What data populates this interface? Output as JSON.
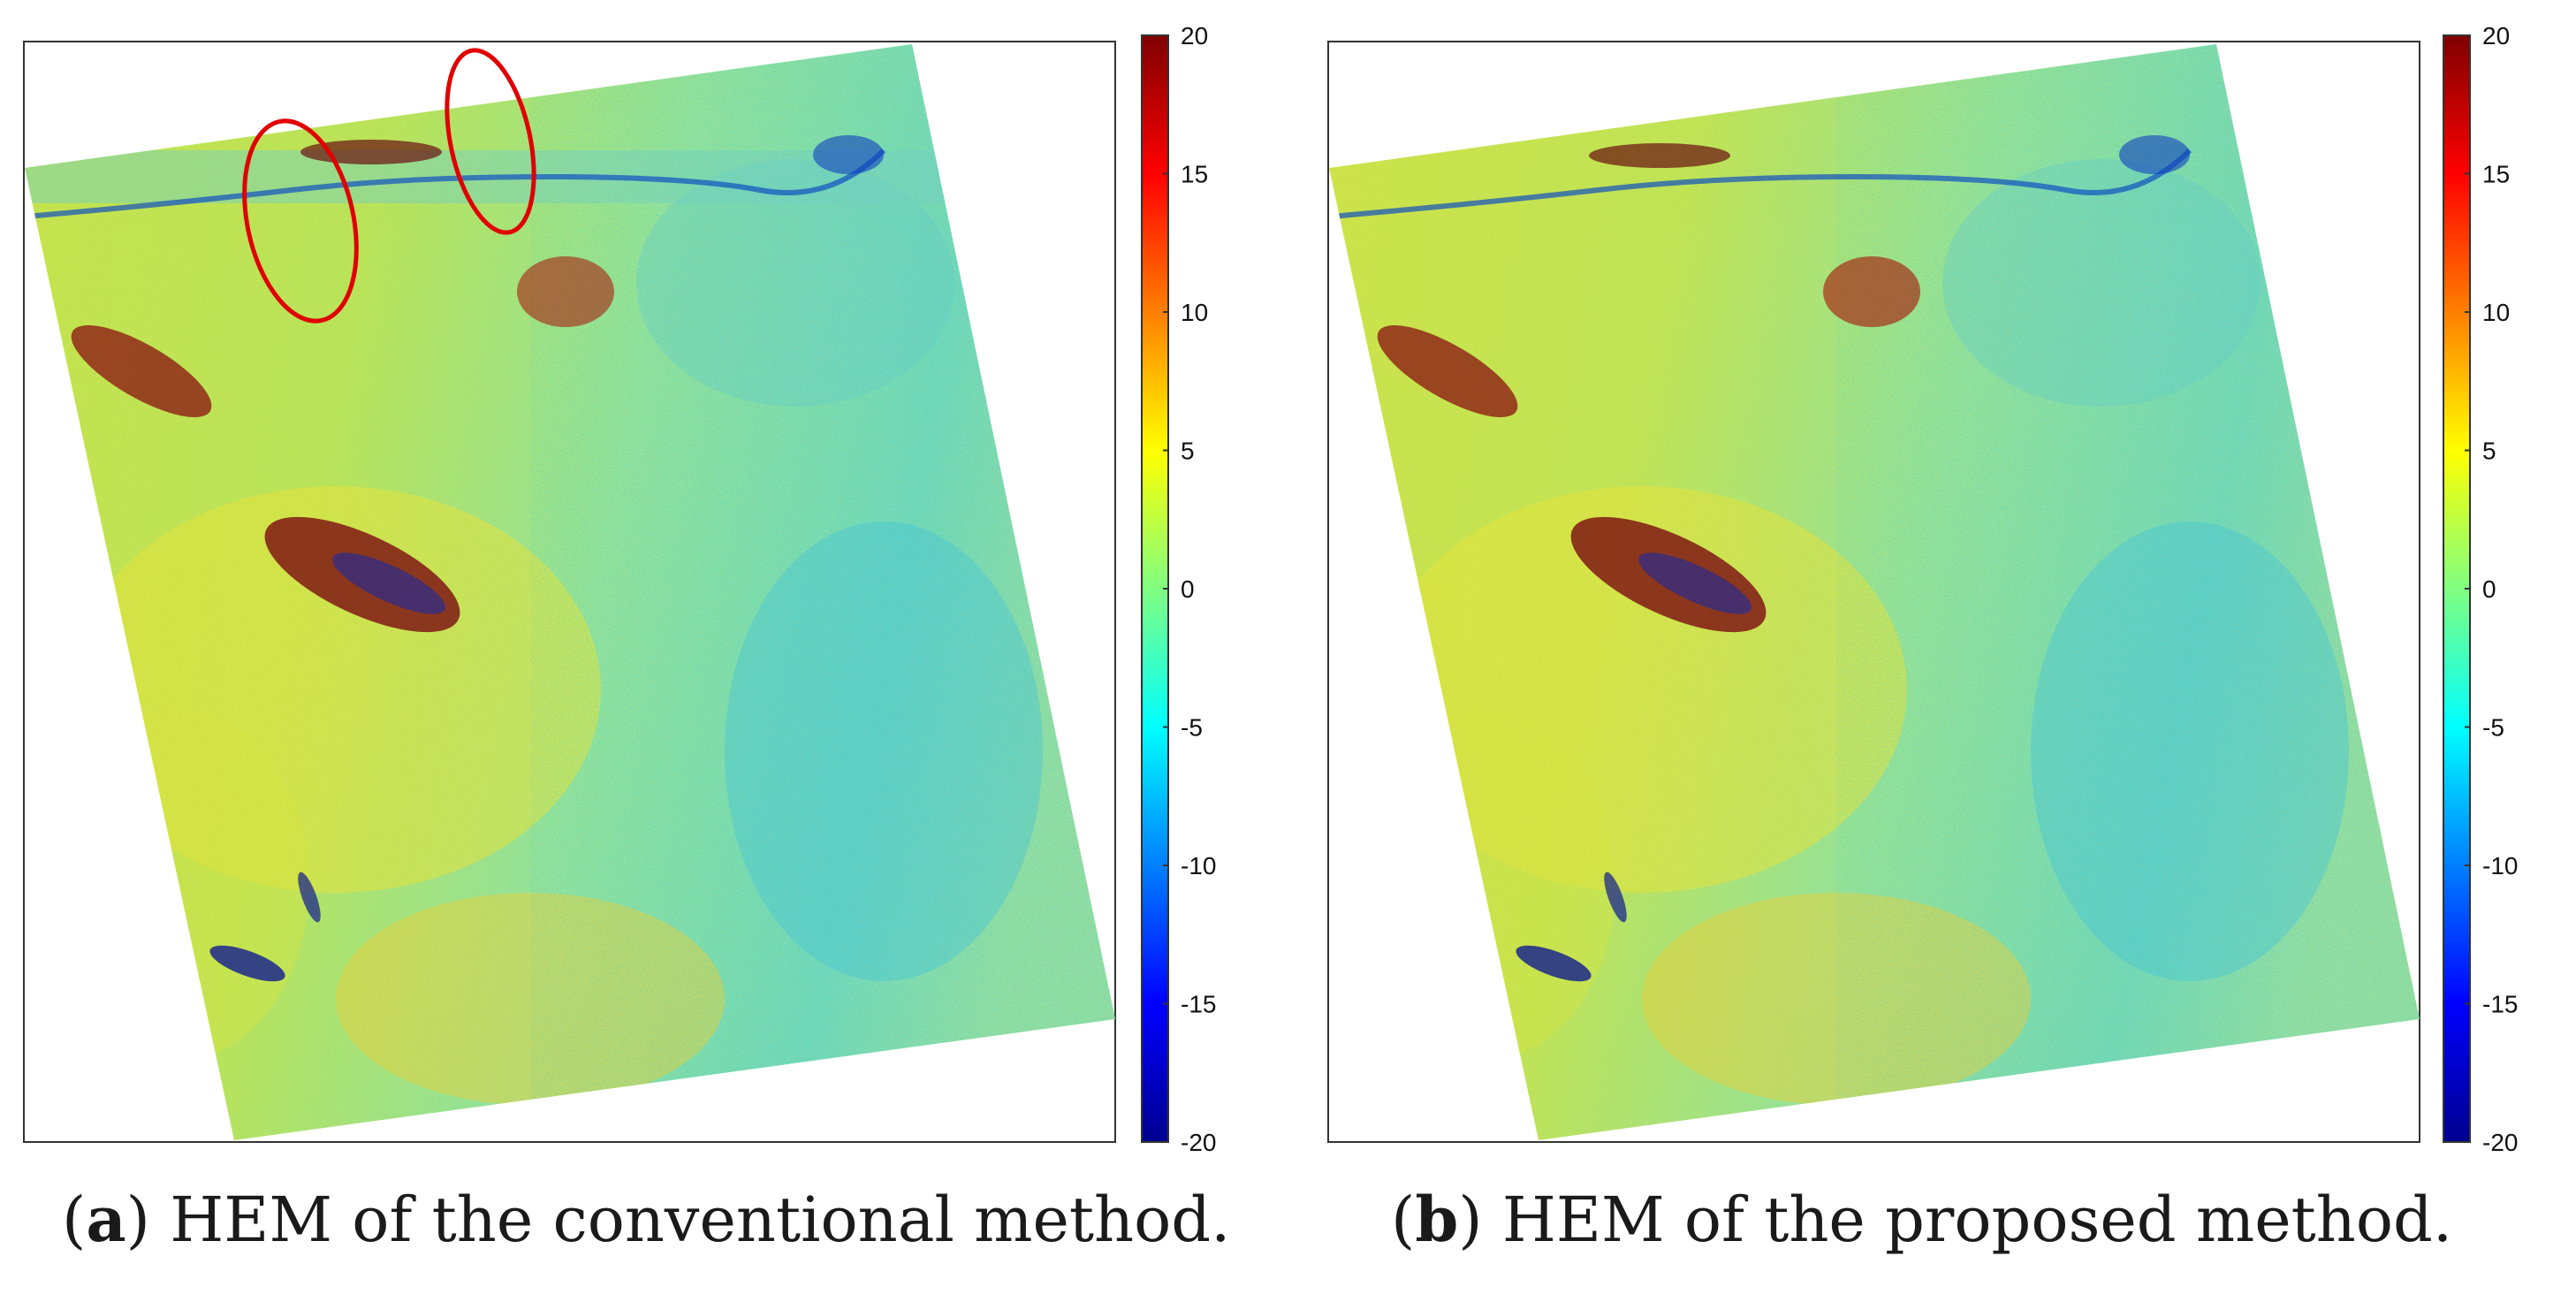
{
  "colorbar": {
    "ticks": [
      "20",
      "15",
      "10",
      "5",
      "0",
      "-5",
      "-10",
      "-15",
      "-20"
    ],
    "colors": [
      "#7f0000",
      "#ff0000",
      "#ff7f00",
      "#ffff00",
      "#80ff80",
      "#00ffff",
      "#007fff",
      "#0000ff",
      "#00008f"
    ]
  },
  "panels": [
    {
      "label": "a",
      "caption_text": " HEM of the conventional method.",
      "has_annotations": true
    },
    {
      "label": "b",
      "caption_text": " HEM of the proposed method.",
      "has_annotations": false
    }
  ],
  "annotation_color": "#e00000"
}
